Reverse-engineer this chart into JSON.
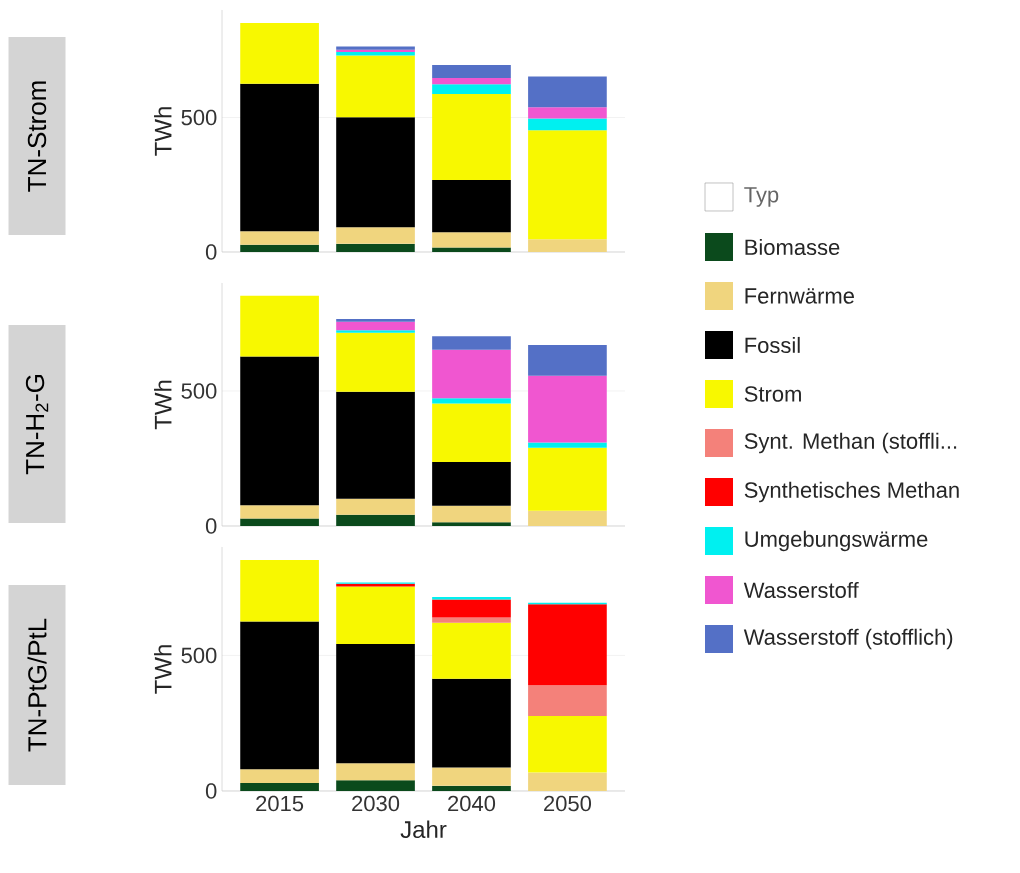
{
  "chart_data": [
    {
      "type": "bar",
      "stacked": true,
      "title": "TN-Strom",
      "ylabel": "TWh",
      "categories": [
        "2015",
        "2030",
        "2040",
        "2050"
      ],
      "ylim": [
        0,
        900
      ],
      "yticks": [
        0,
        500
      ],
      "grid": "y",
      "tick_labels": "y",
      "series": [
        {
          "color": "#0b4a1c",
          "values": [
            27,
            31,
            17,
            null
          ]
        },
        {
          "color": "#f0d57e",
          "values": [
            50,
            61,
            56,
            47
          ]
        },
        {
          "color": "#000000",
          "values": [
            549,
            409,
            195,
            null
          ]
        },
        {
          "color": "#f8f800",
          "values": [
            226,
            230,
            320,
            406
          ]
        },
        {
          "color": "#f4817a",
          "values": [
            null,
            null,
            null,
            null
          ]
        },
        {
          "color": "#ff0000",
          "values": [
            null,
            null,
            null,
            null
          ]
        },
        {
          "color": "#00f0f0",
          "values": [
            null,
            13,
            36,
            43
          ]
        },
        {
          "color": "#f056d0",
          "values": [
            null,
            8,
            23,
            42
          ]
        },
        {
          "color": "#5470c6",
          "values": [
            null,
            12,
            48,
            115
          ]
        }
      ]
    },
    {
      "type": "bar",
      "stacked": true,
      "title": "TN-H$_{2}$-G",
      "ylabel": "TWh",
      "categories": [
        "2015",
        "2030",
        "2040",
        "2050"
      ],
      "ylim": [
        0,
        900
      ],
      "yticks": [
        0,
        500
      ],
      "grid": "y",
      "tick_labels": "y",
      "legend": "right",
      "legend_title": "Typ",
      "series": [
        {
          "name": "Biomasse",
          "color": "#0b4a1c",
          "values": [
            28,
            42,
            14,
            null
          ]
        },
        {
          "name": "Fernwärme",
          "color": "#f0d57e",
          "values": [
            49,
            59,
            61,
            56
          ]
        },
        {
          "name": "Fossil",
          "color": "#000000",
          "values": [
            551,
            396,
            162,
            null
          ]
        },
        {
          "name": "Strom",
          "color": "#f8f800",
          "values": [
            225,
            219,
            217,
            234
          ]
        },
        {
          "name": "Synt. Methan (stoffli...",
          "color": "#f4817a",
          "values": [
            null,
            null,
            null,
            null
          ]
        },
        {
          "name": "Synthetisches Methan",
          "color": "#ff0000",
          "values": [
            null,
            null,
            null,
            null
          ]
        },
        {
          "name": "Umgebungswärme",
          "color": "#00f0f0",
          "values": [
            null,
            9,
            19,
            19
          ]
        },
        {
          "name": "Wasserstoff",
          "color": "#f056d0",
          "values": [
            null,
            31,
            180,
            247
          ]
        },
        {
          "name": "Wasserstoff (stofflich)",
          "color": "#5470c6",
          "values": [
            null,
            11,
            50,
            114
          ]
        }
      ]
    },
    {
      "type": "bar",
      "stacked": true,
      "title": "TN-PtG/PtL",
      "ylabel": "TWh",
      "xlabel": "Jahr",
      "categories": [
        "2015",
        "2030",
        "2040",
        "2050"
      ],
      "ylim": [
        0,
        900
      ],
      "yticks": [
        0,
        500
      ],
      "grid": "y",
      "series": [
        {
          "color": "#0b4a1c",
          "values": [
            29,
            40,
            19,
            null
          ]
        },
        {
          "color": "#f0d57e",
          "values": [
            51,
            62,
            68,
            68
          ]
        },
        {
          "color": "#000000",
          "values": [
            545,
            440,
            327,
            null
          ]
        },
        {
          "color": "#f8f800",
          "values": [
            227,
            212,
            207,
            209
          ]
        },
        {
          "color": "#f4817a",
          "values": [
            null,
            null,
            19,
            113
          ]
        },
        {
          "color": "#ff0000",
          "values": [
            null,
            10,
            66,
            299
          ]
        },
        {
          "color": "#00f0f0",
          "values": [
            null,
            5,
            10,
            5
          ]
        },
        {
          "color": "#f056d0",
          "values": [
            null,
            null,
            null,
            null
          ]
        },
        {
          "color": "#5470c6",
          "values": [
            null,
            null,
            null,
            null
          ]
        }
      ]
    }
  ]
}
